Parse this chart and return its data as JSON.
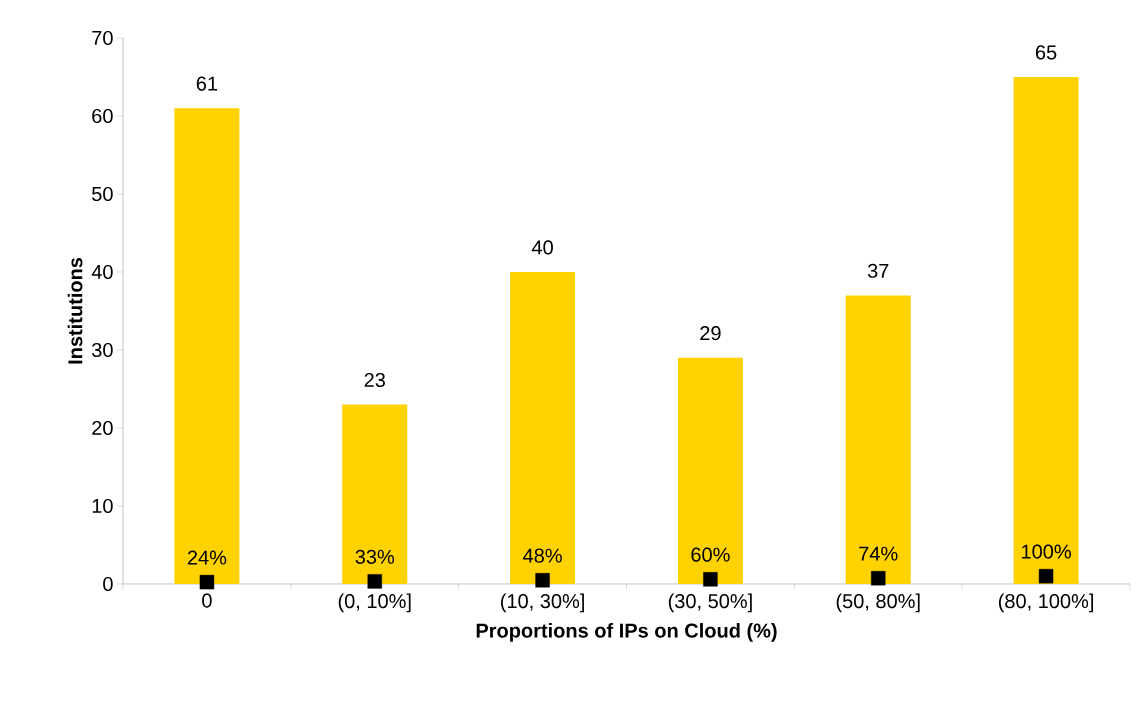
{
  "chart_data": {
    "type": "bar",
    "xlabel": "Proportions of IPs on Cloud (%)",
    "ylabel": "Institutions",
    "categories": [
      "0",
      "(0, 10%]",
      "(10, 30%]",
      "(30, 50%]",
      "(50, 80%]",
      "(80, 100%]"
    ],
    "series": [
      {
        "color": "#ffd200",
        "values": [
          61,
          23,
          40,
          29,
          37,
          65
        ]
      },
      {
        "type": "scatter",
        "color": "#000000",
        "marker": "square",
        "values": [
          0.24,
          0.33,
          0.48,
          0.6,
          0.74,
          1.0
        ],
        "value_labels": [
          "24%",
          "33%",
          "48%",
          "60%",
          "74%",
          "100%"
        ]
      }
    ],
    "data_labels": true,
    "ylim": [
      0,
      70
    ],
    "yticks": [
      0,
      10,
      20,
      30,
      40,
      50,
      60,
      70
    ],
    "grid": false
  }
}
